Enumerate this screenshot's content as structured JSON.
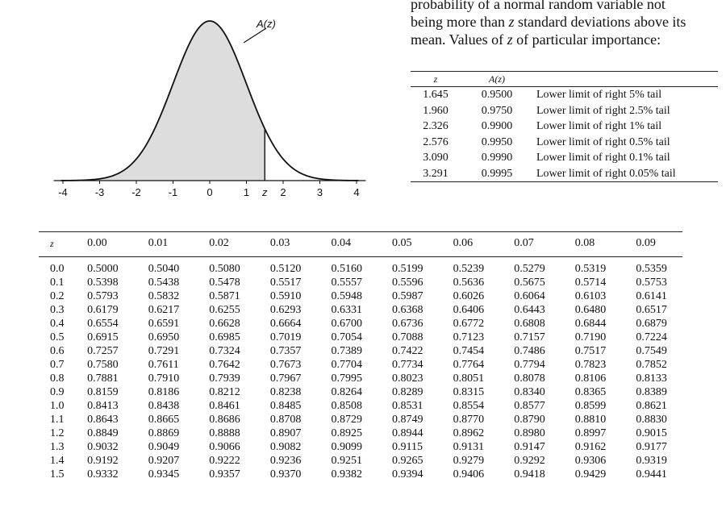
{
  "figure": {
    "curve_label": "A(z)",
    "marker_label": "z",
    "marker_value": 1.5,
    "x_ticks": [
      "-4",
      "-3",
      "-2",
      "-1",
      "0",
      "1",
      "2",
      "3",
      "4"
    ]
  },
  "intro": {
    "line1": "probability of a normal random variable not",
    "line2_pre": "being more than ",
    "line2_var": "z",
    "line2_post": " standard deviations above its",
    "line3_pre": "mean.  Values of ",
    "line3_var": "z",
    "line3_post": " of particular importance:"
  },
  "important_values": {
    "headers": [
      "z",
      "A(z)",
      ""
    ],
    "rows": [
      [
        "1.645",
        "0.9500",
        "Lower limit of right 5% tail"
      ],
      [
        "1.960",
        "0.9750",
        "Lower limit of right 2.5% tail"
      ],
      [
        "2.326",
        "0.9900",
        "Lower limit of right 1% tail"
      ],
      [
        "2.576",
        "0.9950",
        "Lower limit of right 0.5% tail"
      ],
      [
        "3.090",
        "0.9990",
        "Lower limit of right 0.1% tail"
      ],
      [
        "3.291",
        "0.9995",
        "Lower limit of right 0.05% tail"
      ]
    ]
  },
  "normal_table": {
    "headers": [
      "z",
      "0.00",
      "0.01",
      "0.02",
      "0.03",
      "0.04",
      "0.05",
      "0.06",
      "0.07",
      "0.08",
      "0.09"
    ],
    "rows": [
      [
        "0.0",
        "0.5000",
        "0.5040",
        "0.5080",
        "0.5120",
        "0.5160",
        "0.5199",
        "0.5239",
        "0.5279",
        "0.5319",
        "0.5359"
      ],
      [
        "0.1",
        "0.5398",
        "0.5438",
        "0.5478",
        "0.5517",
        "0.5557",
        "0.5596",
        "0.5636",
        "0.5675",
        "0.5714",
        "0.5753"
      ],
      [
        "0.2",
        "0.5793",
        "0.5832",
        "0.5871",
        "0.5910",
        "0.5948",
        "0.5987",
        "0.6026",
        "0.6064",
        "0.6103",
        "0.6141"
      ],
      [
        "0.3",
        "0.6179",
        "0.6217",
        "0.6255",
        "0.6293",
        "0.6331",
        "0.6368",
        "0.6406",
        "0.6443",
        "0.6480",
        "0.6517"
      ],
      [
        "0.4",
        "0.6554",
        "0.6591",
        "0.6628",
        "0.6664",
        "0.6700",
        "0.6736",
        "0.6772",
        "0.6808",
        "0.6844",
        "0.6879"
      ],
      [
        "0.5",
        "0.6915",
        "0.6950",
        "0.6985",
        "0.7019",
        "0.7054",
        "0.7088",
        "0.7123",
        "0.7157",
        "0.7190",
        "0.7224"
      ],
      [
        "0.6",
        "0.7257",
        "0.7291",
        "0.7324",
        "0.7357",
        "0.7389",
        "0.7422",
        "0.7454",
        "0.7486",
        "0.7517",
        "0.7549"
      ],
      [
        "0.7",
        "0.7580",
        "0.7611",
        "0.7642",
        "0.7673",
        "0.7704",
        "0.7734",
        "0.7764",
        "0.7794",
        "0.7823",
        "0.7852"
      ],
      [
        "0.8",
        "0.7881",
        "0.7910",
        "0.7939",
        "0.7967",
        "0.7995",
        "0.8023",
        "0.8051",
        "0.8078",
        "0.8106",
        "0.8133"
      ],
      [
        "0.9",
        "0.8159",
        "0.8186",
        "0.8212",
        "0.8238",
        "0.8264",
        "0.8289",
        "0.8315",
        "0.8340",
        "0.8365",
        "0.8389"
      ],
      [
        "1.0",
        "0.8413",
        "0.8438",
        "0.8461",
        "0.8485",
        "0.8508",
        "0.8531",
        "0.8554",
        "0.8577",
        "0.8599",
        "0.8621"
      ],
      [
        "1.1",
        "0.8643",
        "0.8665",
        "0.8686",
        "0.8708",
        "0.8729",
        "0.8749",
        "0.8770",
        "0.8790",
        "0.8810",
        "0.8830"
      ],
      [
        "1.2",
        "0.8849",
        "0.8869",
        "0.8888",
        "0.8907",
        "0.8925",
        "0.8944",
        "0.8962",
        "0.8980",
        "0.8997",
        "0.9015"
      ],
      [
        "1.3",
        "0.9032",
        "0.9049",
        "0.9066",
        "0.9082",
        "0.9099",
        "0.9115",
        "0.9131",
        "0.9147",
        "0.9162",
        "0.9177"
      ],
      [
        "1.4",
        "0.9192",
        "0.9207",
        "0.9222",
        "0.9236",
        "0.9251",
        "0.9265",
        "0.9279",
        "0.9292",
        "0.9306",
        "0.9319"
      ],
      [
        "1.5",
        "0.9332",
        "0.9345",
        "0.9357",
        "0.9370",
        "0.9382",
        "0.9394",
        "0.9406",
        "0.9418",
        "0.9429",
        "0.9441"
      ]
    ]
  },
  "colors": {
    "shade": "#dddddd",
    "ink": "#111111"
  }
}
